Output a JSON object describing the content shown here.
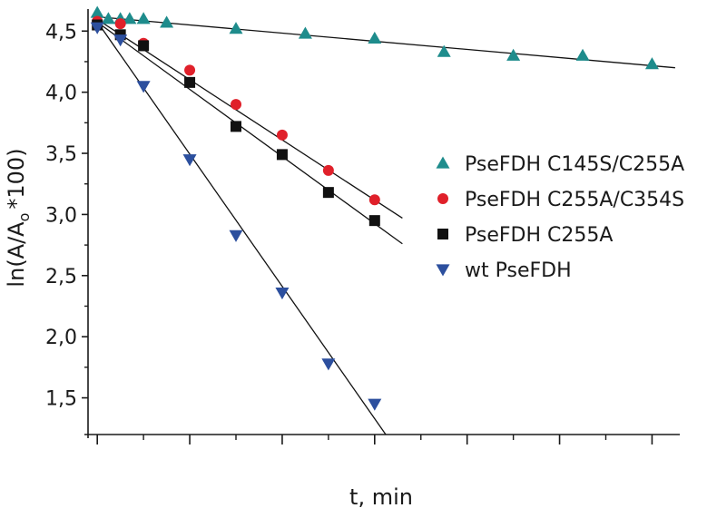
{
  "chart_data": {
    "type": "scatter",
    "title": "",
    "xlabel": "t, min",
    "ylabel": "ln(A/A",
    "ylabel_subscript": "o",
    "ylabel_suffix": "*100)",
    "xlim": [
      -0.1,
      6.3
    ],
    "ylim": [
      1.2,
      4.68
    ],
    "x_major_ticks": [
      0,
      1,
      2,
      3,
      4,
      5,
      6
    ],
    "y_ticks": [
      1.5,
      2.0,
      2.5,
      3.0,
      3.5,
      4.0,
      4.5
    ],
    "y_tick_labels": [
      "1,5",
      "2,0",
      "2,5",
      "3,0",
      "3,5",
      "4,0",
      "4,5"
    ],
    "grid": false,
    "legend_position": "right",
    "series": [
      {
        "name": "PseFDH C145S/C255A",
        "marker": "triangle-up",
        "color": "#1e8c8c",
        "x": [
          0.0,
          0.12,
          0.25,
          0.35,
          0.5,
          0.75,
          1.5,
          2.25,
          3.0,
          3.75,
          4.5,
          5.25,
          6.0
        ],
        "y": [
          4.65,
          4.6,
          4.6,
          4.6,
          4.6,
          4.57,
          4.52,
          4.48,
          4.44,
          4.33,
          4.3,
          4.3,
          4.23
        ],
        "fit": {
          "x": [
            -0.05,
            6.25
          ],
          "y": [
            4.62,
            4.2
          ]
        }
      },
      {
        "name": "PseFDH C255A/C354S",
        "marker": "circle",
        "color": "#e0202a",
        "x": [
          0.0,
          0.25,
          0.5,
          1.0,
          1.5,
          2.0,
          2.5,
          3.0
        ],
        "y": [
          4.58,
          4.56,
          4.4,
          4.18,
          3.9,
          3.65,
          3.36,
          3.12
        ],
        "fit": {
          "x": [
            -0.05,
            3.3
          ],
          "y": [
            4.62,
            2.97
          ]
        }
      },
      {
        "name": "PseFDH C255A",
        "marker": "square",
        "color": "#111111",
        "x": [
          0.0,
          0.25,
          0.5,
          1.0,
          1.5,
          2.0,
          2.5,
          3.0
        ],
        "y": [
          4.55,
          4.47,
          4.38,
          4.08,
          3.72,
          3.49,
          3.18,
          2.95
        ],
        "fit": {
          "x": [
            -0.05,
            3.3
          ],
          "y": [
            4.6,
            2.76
          ]
        }
      },
      {
        "name": "wt PseFDH",
        "marker": "triangle-down",
        "color": "#2c4f9e",
        "x": [
          0.0,
          0.25,
          0.5,
          1.0,
          1.5,
          2.0,
          2.5,
          3.0
        ],
        "y": [
          4.53,
          4.43,
          4.05,
          3.45,
          2.83,
          2.36,
          1.78,
          1.45
        ],
        "fit": {
          "x": [
            -0.05,
            3.12
          ],
          "y": [
            4.63,
            1.2
          ]
        }
      }
    ]
  }
}
